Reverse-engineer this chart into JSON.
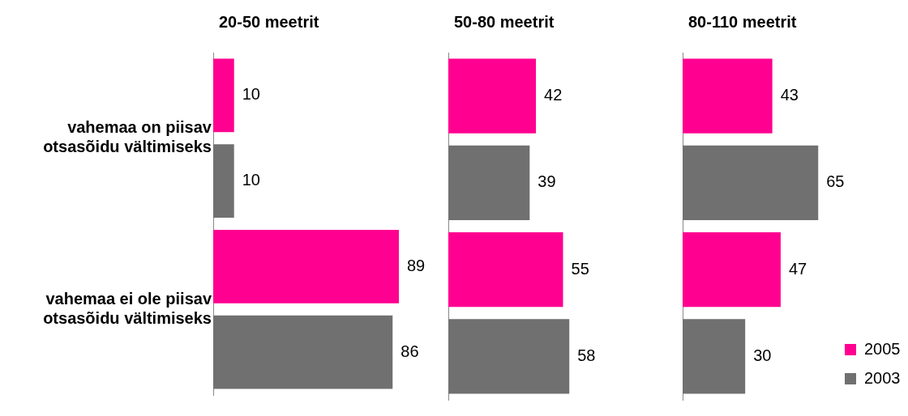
{
  "chart_data": [
    {
      "type": "bar",
      "orientation": "horizontal",
      "title": "20-50 meetrit",
      "categories": [
        "vahemaa on piisav otsasõidu vältimiseks",
        "vahemaa ei ole piisav otsasõidu vältimiseks"
      ],
      "series": [
        {
          "color": "#ff0090",
          "values": [
            10,
            89
          ]
        },
        {
          "color": "#707070",
          "values": [
            10,
            86
          ]
        }
      ],
      "data_labels": true,
      "tick_labels": "y"
    },
    {
      "type": "bar",
      "orientation": "horizontal",
      "title": "50-80 meetrit",
      "categories": [
        null,
        null
      ],
      "series": [
        {
          "color": "#ff0090",
          "values": [
            42,
            55
          ]
        },
        {
          "color": "#707070",
          "values": [
            39,
            58
          ]
        }
      ],
      "data_labels": true,
      "tick_labels": false
    },
    {
      "type": "bar",
      "orientation": "horizontal",
      "title": "80-110 meetrit",
      "categories": [
        null,
        null
      ],
      "series": [
        {
          "name": "2005",
          "color": "#ff0090",
          "values": [
            43,
            47
          ]
        },
        {
          "name": "2003",
          "color": "#707070",
          "values": [
            65,
            30
          ]
        }
      ],
      "data_labels": true,
      "tick_labels": false,
      "legend": "right"
    }
  ]
}
